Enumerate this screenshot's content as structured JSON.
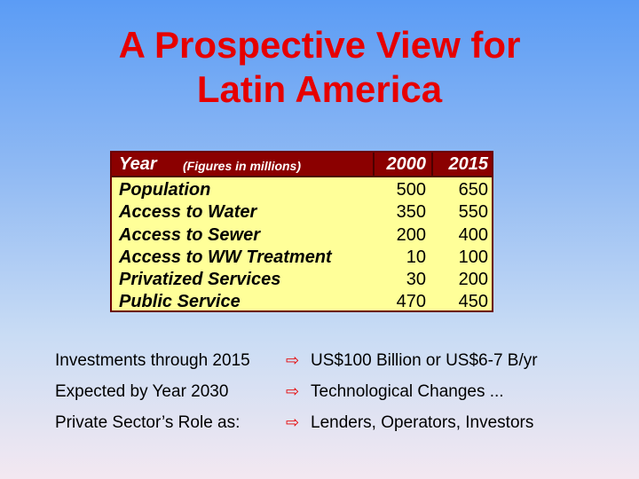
{
  "title": {
    "line1": "A Prospective View for",
    "line2": "Latin America"
  },
  "table": {
    "header": {
      "year": "Year",
      "note": "(Figures in millions)",
      "col1": "2000",
      "col2": "2015"
    },
    "rows": [
      {
        "label": "Population",
        "v2000": "500",
        "v2015": "650"
      },
      {
        "label": "Access to Water",
        "v2000": "350",
        "v2015": "550"
      },
      {
        "label": "Access to Sewer",
        "v2000": "200",
        "v2015": "400"
      },
      {
        "label": "Access to WW Treatment",
        "v2000": "10",
        "v2015": "100"
      },
      {
        "label": "Privatized Services",
        "v2000": "30",
        "v2015": "200"
      },
      {
        "label": "Public Service",
        "v2000": "470",
        "v2015": "450"
      }
    ]
  },
  "bullets": [
    {
      "label": "Investments through 2015",
      "arrow": "⇨",
      "text": "US$100 Billion or US$6-7 B/yr"
    },
    {
      "label": "Expected by Year 2030",
      "arrow": "⇨",
      "text": "Technological Changes ..."
    },
    {
      "label": "Private Sector’s Role as:",
      "arrow": "⇨",
      "text": "Lenders, Operators, Investors"
    }
  ],
  "colors": {
    "title": "#e60000",
    "header_bg": "#8b0000",
    "table_bg": "#ffff99"
  }
}
